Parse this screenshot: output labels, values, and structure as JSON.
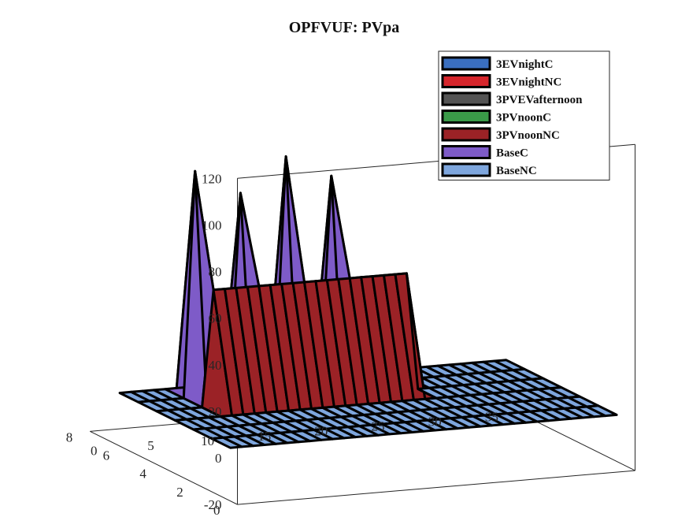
{
  "chart_data": {
    "type": "surface",
    "title": "OPFVUF: PVpa",
    "xlabel": "",
    "ylabel": "",
    "zlabel": "",
    "x_ticks": [
      "0",
      "5",
      "10",
      "15",
      "20",
      "25",
      "30",
      "35"
    ],
    "y_ticks": [
      "0",
      "2",
      "4",
      "6",
      "8"
    ],
    "z_ticks": [
      "-20",
      "0",
      "20",
      "40",
      "60",
      "80",
      "100",
      "120"
    ],
    "xlim": [
      0,
      35
    ],
    "ylim": [
      0,
      8
    ],
    "zlim": [
      -20,
      120
    ],
    "legend_position": "top-right",
    "legend": [
      {
        "name": "3EVnightC",
        "color": "#3a6fc0"
      },
      {
        "name": "3EVnightNC",
        "color": "#d6262c"
      },
      {
        "name": "3PVEVafternoon",
        "color": "#545454"
      },
      {
        "name": "3PVnoonC",
        "color": "#3a9a48"
      },
      {
        "name": "3PVnoonNC",
        "color": "#9b2226"
      },
      {
        "name": "BaseC",
        "color": "#7e5bc8"
      },
      {
        "name": "BaseNC",
        "color": "#7ea6dd"
      }
    ],
    "series": [
      {
        "name": "3EVnightC",
        "y": 1,
        "values_by_x": {}
      },
      {
        "name": "3EVnightNC",
        "y": 2,
        "values_by_x": {}
      },
      {
        "name": "3PVEVafternoon",
        "y": 3,
        "values_by_x": {}
      },
      {
        "name": "3PVnoonC",
        "y": 4,
        "values_by_x": {}
      },
      {
        "name": "3PVnoonNC",
        "y": 5,
        "values_by_x": {
          "6": 50,
          "7": 50,
          "8": 50,
          "9": 50,
          "10": 50,
          "11": 50,
          "12": 50,
          "13": 50,
          "14": 50,
          "15": 50,
          "16": 50,
          "17": 50,
          "18": 50,
          "19": 50,
          "20": 50,
          "21": 50,
          "22": 50,
          "23": 50
        }
      },
      {
        "name": "BaseC",
        "y": 6,
        "values_by_x": {
          "6": 97,
          "10": 86,
          "14": 100,
          "18": 90
        }
      },
      {
        "name": "BaseNC",
        "y": 7,
        "values_by_x": {
          "11": 35,
          "12": 35
        }
      }
    ]
  }
}
